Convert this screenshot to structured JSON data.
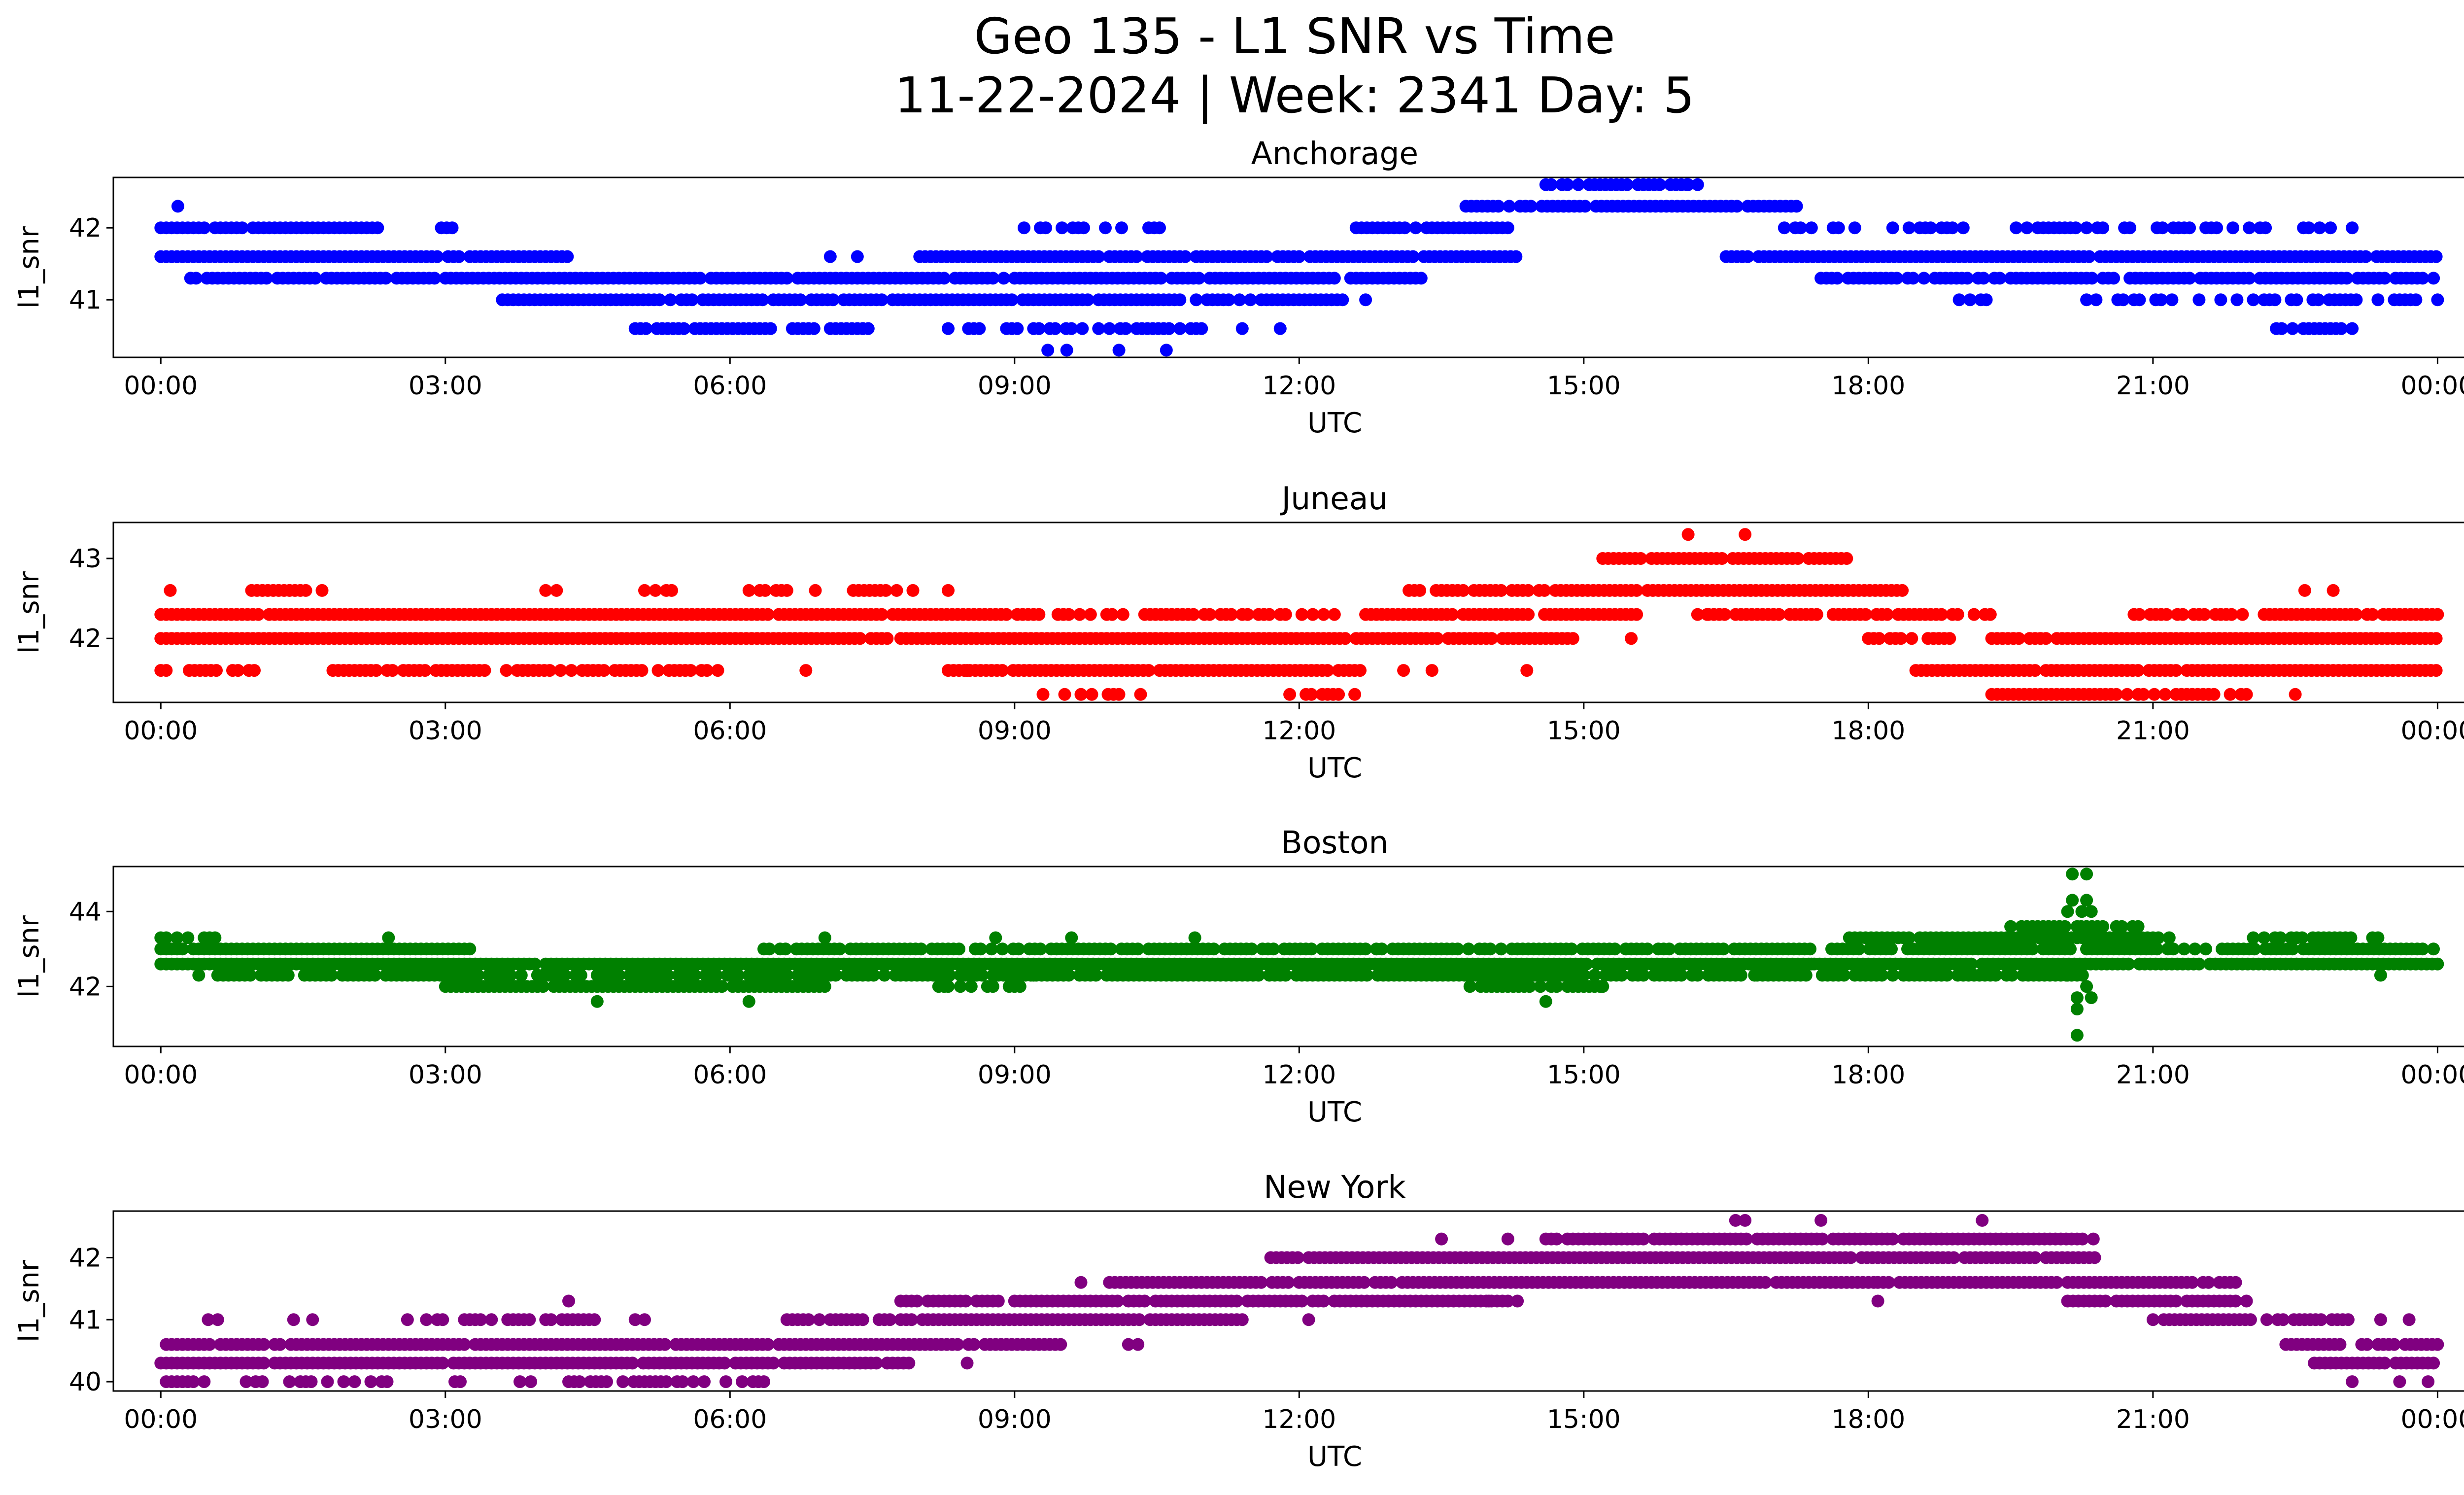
{
  "title_line1": "Geo 135 - L1 SNR vs Time",
  "title_line2": "11-22-2024 | Week: 2341 Day: 5",
  "chart_data": [
    {
      "type": "scatter",
      "title": "Anchorage",
      "color": "#0000ff",
      "xlabel": "UTC",
      "ylabel": "l1_snr",
      "xlim": [
        -0.5,
        25.25
      ],
      "ylim": [
        40.2,
        42.7
      ],
      "xticks": [
        0,
        3,
        6,
        9,
        12,
        15,
        18,
        21,
        24
      ],
      "xtick_labels": [
        "00:00",
        "03:00",
        "06:00",
        "09:00",
        "12:00",
        "15:00",
        "18:00",
        "21:00",
        "00:00"
      ],
      "yticks": [
        41,
        42
      ],
      "ytick_labels": [
        "41",
        "42"
      ],
      "bands": [
        {
          "y": 42.0,
          "x_start": 0.0,
          "x_end": 2.3,
          "density": 0.85
        },
        {
          "y": 42.0,
          "x_start": 2.9,
          "x_end": 3.1,
          "density": 0.6
        },
        {
          "y": 42.0,
          "x_start": 9.1,
          "x_end": 10.6,
          "density": 0.55
        },
        {
          "y": 42.0,
          "x_start": 12.6,
          "x_end": 14.2,
          "density": 0.85
        },
        {
          "y": 42.0,
          "x_start": 17.0,
          "x_end": 19.0,
          "density": 0.5
        },
        {
          "y": 42.0,
          "x_start": 19.5,
          "x_end": 23.0,
          "density": 0.55
        },
        {
          "y": 41.6,
          "x_start": 0.0,
          "x_end": 4.3,
          "density": 0.97
        },
        {
          "y": 41.6,
          "x_start": 7.0,
          "x_end": 7.4,
          "density": 0.5
        },
        {
          "y": 41.6,
          "x_start": 8.0,
          "x_end": 14.3,
          "density": 0.95
        },
        {
          "y": 41.6,
          "x_start": 16.5,
          "x_end": 24.0,
          "density": 0.97
        },
        {
          "y": 41.3,
          "x_start": 0.2,
          "x_end": 1.8,
          "density": 0.75
        },
        {
          "y": 41.3,
          "x_start": 1.8,
          "x_end": 13.3,
          "density": 0.97
        },
        {
          "y": 41.3,
          "x_start": 17.5,
          "x_end": 24.0,
          "density": 0.92
        },
        {
          "y": 41.0,
          "x_start": 3.6,
          "x_end": 12.5,
          "density": 0.9
        },
        {
          "y": 41.0,
          "x_start": 18.9,
          "x_end": 19.4,
          "density": 0.5
        },
        {
          "y": 41.0,
          "x_start": 20.4,
          "x_end": 24.0,
          "density": 0.5
        },
        {
          "y": 40.6,
          "x_start": 5.0,
          "x_end": 7.5,
          "density": 0.6
        },
        {
          "y": 40.6,
          "x_start": 8.4,
          "x_end": 11.0,
          "density": 0.6
        },
        {
          "y": 40.6,
          "x_start": 22.3,
          "x_end": 23.2,
          "density": 0.4
        },
        {
          "y": 42.3,
          "x_start": 13.7,
          "x_end": 17.3,
          "density": 0.95
        },
        {
          "y": 42.6,
          "x_start": 14.6,
          "x_end": 16.2,
          "density": 0.8
        }
      ],
      "points": [
        {
          "x": 0.18,
          "y": 42.3
        },
        {
          "x": 9.35,
          "y": 40.3
        },
        {
          "x": 9.55,
          "y": 40.3
        },
        {
          "x": 10.1,
          "y": 40.3
        },
        {
          "x": 10.6,
          "y": 40.3
        },
        {
          "x": 12.7,
          "y": 41.0
        },
        {
          "x": 11.4,
          "y": 40.6
        },
        {
          "x": 11.8,
          "y": 40.6
        },
        {
          "x": 20.3,
          "y": 41.0
        },
        {
          "x": 23.1,
          "y": 42.0
        },
        {
          "x": 16.1,
          "y": 42.6
        },
        {
          "x": 7.4,
          "y": 40.6
        },
        {
          "x": 8.3,
          "y": 40.6
        }
      ]
    },
    {
      "type": "scatter",
      "title": "Juneau",
      "color": "#ff0000",
      "xlabel": "UTC",
      "ylabel": "l1_snr",
      "xlim": [
        -0.5,
        25.25
      ],
      "ylim": [
        41.2,
        43.45
      ],
      "xticks": [
        0,
        3,
        6,
        9,
        12,
        15,
        18,
        21,
        24
      ],
      "xtick_labels": [
        "00:00",
        "03:00",
        "06:00",
        "09:00",
        "12:00",
        "15:00",
        "18:00",
        "21:00",
        "00:00"
      ],
      "yticks": [
        42,
        43
      ],
      "ytick_labels": [
        "42",
        "43"
      ],
      "bands": [
        {
          "y": 42.3,
          "x_start": 0.0,
          "x_end": 9.3,
          "density": 0.97
        },
        {
          "y": 42.3,
          "x_start": 9.4,
          "x_end": 12.4,
          "density": 0.6
        },
        {
          "y": 42.3,
          "x_start": 12.7,
          "x_end": 15.6,
          "density": 0.95
        },
        {
          "y": 42.3,
          "x_start": 16.2,
          "x_end": 19.3,
          "density": 0.85
        },
        {
          "y": 42.3,
          "x_start": 20.8,
          "x_end": 24.0,
          "density": 0.85
        },
        {
          "y": 42.0,
          "x_start": 0.0,
          "x_end": 7.7,
          "density": 0.97
        },
        {
          "y": 42.0,
          "x_start": 7.8,
          "x_end": 14.9,
          "density": 0.97
        },
        {
          "y": 42.0,
          "x_start": 18.0,
          "x_end": 19.0,
          "density": 0.7
        },
        {
          "y": 42.0,
          "x_start": 19.3,
          "x_end": 24.0,
          "density": 0.97
        },
        {
          "y": 41.6,
          "x_start": 0.0,
          "x_end": 0.1,
          "density": 1.0
        },
        {
          "y": 41.6,
          "x_start": 0.3,
          "x_end": 1.0,
          "density": 0.5
        },
        {
          "y": 41.6,
          "x_start": 1.7,
          "x_end": 5.9,
          "density": 0.75
        },
        {
          "y": 41.6,
          "x_start": 8.3,
          "x_end": 12.8,
          "density": 0.9
        },
        {
          "y": 41.6,
          "x_start": 18.5,
          "x_end": 24.0,
          "density": 0.9
        },
        {
          "y": 41.3,
          "x_start": 9.3,
          "x_end": 10.6,
          "density": 0.3
        },
        {
          "y": 41.3,
          "x_start": 11.9,
          "x_end": 12.7,
          "density": 0.6
        },
        {
          "y": 41.3,
          "x_start": 19.3,
          "x_end": 22.2,
          "density": 0.9
        },
        {
          "y": 42.6,
          "x_start": 0.9,
          "x_end": 1.7,
          "density": 0.8
        },
        {
          "y": 42.6,
          "x_start": 4.0,
          "x_end": 4.3,
          "density": 0.5
        },
        {
          "y": 42.6,
          "x_start": 5.1,
          "x_end": 5.4,
          "density": 0.5
        },
        {
          "y": 42.6,
          "x_start": 6.2,
          "x_end": 6.6,
          "density": 0.5
        },
        {
          "y": 42.6,
          "x_start": 7.3,
          "x_end": 8.0,
          "density": 0.6
        },
        {
          "y": 42.6,
          "x_start": 13.1,
          "x_end": 14.6,
          "density": 0.85
        },
        {
          "y": 42.6,
          "x_start": 14.7,
          "x_end": 18.4,
          "density": 0.95
        },
        {
          "y": 43.0,
          "x_start": 15.2,
          "x_end": 17.8,
          "density": 0.9
        }
      ],
      "points": [
        {
          "x": 0.1,
          "y": 42.6
        },
        {
          "x": 6.9,
          "y": 42.6
        },
        {
          "x": 8.3,
          "y": 42.6
        },
        {
          "x": 16.1,
          "y": 43.3
        },
        {
          "x": 16.7,
          "y": 43.3
        },
        {
          "x": 22.6,
          "y": 42.6
        },
        {
          "x": 22.9,
          "y": 42.6
        },
        {
          "x": 16.3,
          "y": 42.3
        },
        {
          "x": 15.5,
          "y": 42.0
        },
        {
          "x": 14.4,
          "y": 41.6
        },
        {
          "x": 13.4,
          "y": 41.6
        },
        {
          "x": 13.1,
          "y": 41.6
        },
        {
          "x": 6.8,
          "y": 41.6
        },
        {
          "x": 22.5,
          "y": 41.3
        },
        {
          "x": 8.5,
          "y": 41.6
        }
      ]
    },
    {
      "type": "scatter",
      "title": "Boston",
      "color": "#008000",
      "xlabel": "UTC",
      "ylabel": "l1_snr",
      "xlim": [
        -0.5,
        25.25
      ],
      "ylim": [
        40.4,
        45.2
      ],
      "xticks": [
        0,
        3,
        6,
        9,
        12,
        15,
        18,
        21,
        24
      ],
      "xtick_labels": [
        "00:00",
        "03:00",
        "06:00",
        "09:00",
        "12:00",
        "15:00",
        "18:00",
        "21:00",
        "00:00"
      ],
      "yticks": [
        42,
        44
      ],
      "ytick_labels": [
        "42",
        "44"
      ],
      "bands": [
        {
          "y": 43.0,
          "x_start": 0.0,
          "x_end": 3.3,
          "density": 0.95
        },
        {
          "y": 43.0,
          "x_start": 6.3,
          "x_end": 24.0,
          "density": 0.85
        },
        {
          "y": 42.6,
          "x_start": 0.0,
          "x_end": 24.0,
          "density": 0.98
        },
        {
          "y": 42.3,
          "x_start": 0.6,
          "x_end": 20.3,
          "density": 0.85
        },
        {
          "y": 42.0,
          "x_start": 3.0,
          "x_end": 7.0,
          "density": 0.95
        },
        {
          "y": 42.0,
          "x_start": 13.8,
          "x_end": 15.2,
          "density": 0.8
        },
        {
          "y": 42.0,
          "x_start": 8.2,
          "x_end": 9.2,
          "density": 0.4
        },
        {
          "y": 43.3,
          "x_start": 0.0,
          "x_end": 0.6,
          "density": 0.6
        },
        {
          "y": 43.3,
          "x_start": 17.8,
          "x_end": 21.2,
          "density": 0.95
        },
        {
          "y": 43.3,
          "x_start": 22.0,
          "x_end": 23.4,
          "density": 0.6
        },
        {
          "y": 43.6,
          "x_start": 19.5,
          "x_end": 20.5,
          "density": 0.85
        },
        {
          "y": 43.6,
          "x_start": 20.5,
          "x_end": 21.0,
          "density": 0.5
        }
      ],
      "points": [
        {
          "x": 20.15,
          "y": 45.0
        },
        {
          "x": 20.3,
          "y": 45.0
        },
        {
          "x": 20.15,
          "y": 44.3
        },
        {
          "x": 20.3,
          "y": 44.3
        },
        {
          "x": 20.1,
          "y": 44.0
        },
        {
          "x": 20.25,
          "y": 44.0
        },
        {
          "x": 20.35,
          "y": 44.0
        },
        {
          "x": 20.2,
          "y": 43.6
        },
        {
          "x": 20.1,
          "y": 42.3
        },
        {
          "x": 20.3,
          "y": 42.0
        },
        {
          "x": 20.2,
          "y": 41.7
        },
        {
          "x": 20.35,
          "y": 41.7
        },
        {
          "x": 20.2,
          "y": 41.4
        },
        {
          "x": 20.2,
          "y": 40.7
        },
        {
          "x": 4.6,
          "y": 41.6
        },
        {
          "x": 6.2,
          "y": 41.6
        },
        {
          "x": 14.6,
          "y": 41.6
        },
        {
          "x": 0.4,
          "y": 42.3
        },
        {
          "x": 23.4,
          "y": 42.3
        },
        {
          "x": 2.4,
          "y": 43.3
        },
        {
          "x": 7.0,
          "y": 43.3
        },
        {
          "x": 8.8,
          "y": 43.3
        },
        {
          "x": 9.6,
          "y": 43.3
        },
        {
          "x": 10.9,
          "y": 43.3
        },
        {
          "x": 8.3,
          "y": 42.0
        },
        {
          "x": 9.2,
          "y": 42.3
        },
        {
          "x": 6.6,
          "y": 42.0
        },
        {
          "x": 16.8,
          "y": 42.3
        },
        {
          "x": 17.4,
          "y": 42.6
        },
        {
          "x": 15.2,
          "y": 42.0
        }
      ]
    },
    {
      "type": "scatter",
      "title": "New York",
      "color": "#800080",
      "xlabel": "UTC",
      "ylabel": "l1_snr",
      "xlim": [
        -0.5,
        25.25
      ],
      "ylim": [
        39.85,
        42.75
      ],
      "xticks": [
        0,
        3,
        6,
        9,
        12,
        15,
        18,
        21,
        24
      ],
      "xtick_labels": [
        "00:00",
        "03:00",
        "06:00",
        "09:00",
        "12:00",
        "15:00",
        "18:00",
        "21:00",
        "00:00"
      ],
      "yticks": [
        40,
        41,
        42
      ],
      "ytick_labels": [
        "40",
        "41",
        "42"
      ],
      "bands": [
        {
          "y": 40.6,
          "x_start": 0.0,
          "x_end": 9.5,
          "density": 0.97
        },
        {
          "y": 40.6,
          "x_start": 22.4,
          "x_end": 24.0,
          "density": 0.95
        },
        {
          "y": 40.3,
          "x_start": 0.0,
          "x_end": 7.9,
          "density": 0.97
        },
        {
          "y": 40.3,
          "x_start": 22.7,
          "x_end": 24.0,
          "density": 0.95
        },
        {
          "y": 40.0,
          "x_start": 0.0,
          "x_end": 0.5,
          "density": 0.8
        },
        {
          "y": 40.0,
          "x_start": 0.9,
          "x_end": 2.4,
          "density": 0.5
        },
        {
          "y": 40.0,
          "x_start": 3.1,
          "x_end": 4.0,
          "density": 0.3
        },
        {
          "y": 40.0,
          "x_start": 4.3,
          "x_end": 6.4,
          "density": 0.8
        },
        {
          "y": 41.0,
          "x_start": 2.8,
          "x_end": 4.6,
          "density": 0.85
        },
        {
          "y": 41.0,
          "x_start": 6.6,
          "x_end": 11.4,
          "density": 0.9
        },
        {
          "y": 41.0,
          "x_start": 21.0,
          "x_end": 23.1,
          "density": 0.85
        },
        {
          "y": 41.3,
          "x_start": 7.8,
          "x_end": 14.2,
          "density": 0.95
        },
        {
          "y": 41.3,
          "x_start": 20.1,
          "x_end": 22.0,
          "density": 0.95
        },
        {
          "y": 41.6,
          "x_start": 10.0,
          "x_end": 18.1,
          "density": 0.97
        },
        {
          "y": 41.6,
          "x_start": 18.1,
          "x_end": 21.9,
          "density": 0.95
        },
        {
          "y": 42.0,
          "x_start": 11.7,
          "x_end": 20.4,
          "density": 0.97
        },
        {
          "y": 42.3,
          "x_start": 14.6,
          "x_end": 20.4,
          "density": 0.95
        }
      ],
      "points": [
        {
          "x": 0.5,
          "y": 41.0
        },
        {
          "x": 0.6,
          "y": 41.0
        },
        {
          "x": 1.4,
          "y": 41.0
        },
        {
          "x": 1.6,
          "y": 41.0
        },
        {
          "x": 2.6,
          "y": 41.0
        },
        {
          "x": 5.0,
          "y": 41.0
        },
        {
          "x": 5.1,
          "y": 41.0
        },
        {
          "x": 4.3,
          "y": 41.3
        },
        {
          "x": 8.5,
          "y": 40.3
        },
        {
          "x": 13.5,
          "y": 42.3
        },
        {
          "x": 14.2,
          "y": 42.3
        },
        {
          "x": 16.6,
          "y": 42.6
        },
        {
          "x": 16.7,
          "y": 42.6
        },
        {
          "x": 17.5,
          "y": 42.6
        },
        {
          "x": 19.2,
          "y": 42.6
        },
        {
          "x": 9.7,
          "y": 41.6
        },
        {
          "x": 10.2,
          "y": 40.6
        },
        {
          "x": 10.3,
          "y": 40.6
        },
        {
          "x": 12.1,
          "y": 41.0
        },
        {
          "x": 14.0,
          "y": 41.3
        },
        {
          "x": 14.3,
          "y": 41.3
        },
        {
          "x": 18.1,
          "y": 41.3
        },
        {
          "x": 23.4,
          "y": 41.0
        },
        {
          "x": 23.1,
          "y": 40.0
        },
        {
          "x": 23.6,
          "y": 40.0
        },
        {
          "x": 23.9,
          "y": 40.0
        },
        {
          "x": 1.0,
          "y": 40.0
        },
        {
          "x": 3.1,
          "y": 40.0
        },
        {
          "x": 23.7,
          "y": 41.0
        }
      ]
    }
  ]
}
